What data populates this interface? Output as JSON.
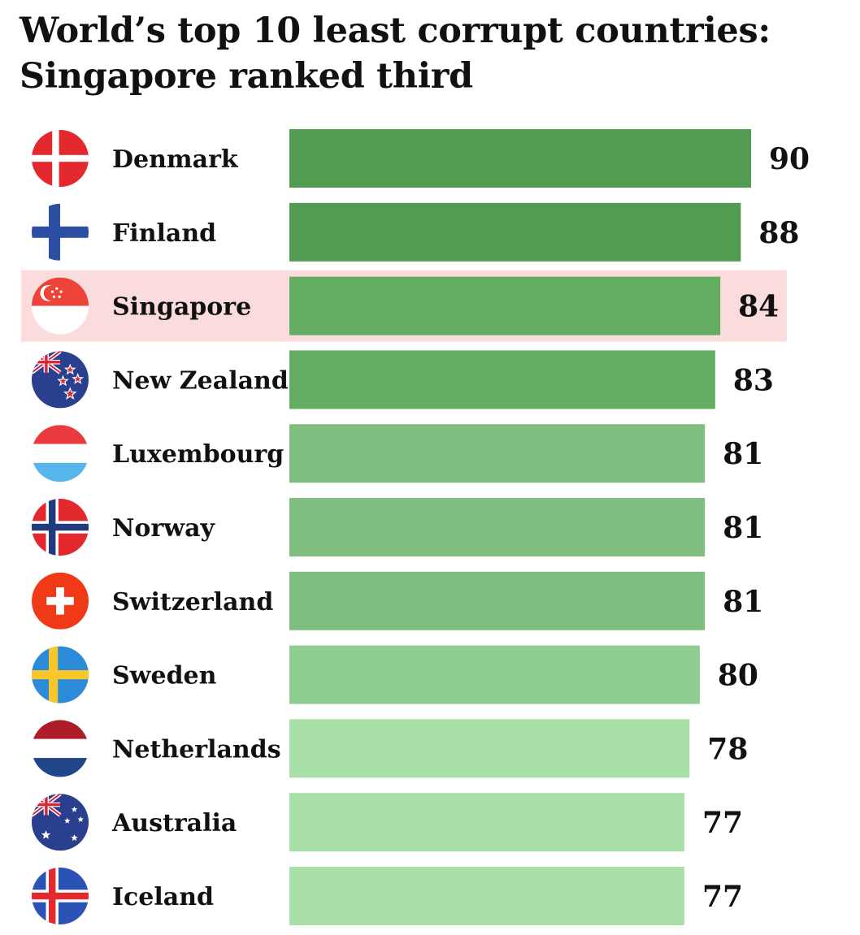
{
  "title_lines": [
    "World’s top 10 least corrupt countries:",
    "Singapore ranked third"
  ],
  "colors": {
    "highlight_band": "#fbdcdc",
    "bar_dark": "#529c52",
    "bar_mid": "#62ad62",
    "bar_light": "#80be80",
    "bar_lighter": "#90cd90",
    "bar_lightest": "#a8e0a8",
    "text": "#111111"
  },
  "chart_data": {
    "type": "bar",
    "orientation": "horizontal",
    "title": "World’s top 10 least corrupt countries: Singapore ranked third",
    "categories": [
      "Denmark",
      "Finland",
      "Singapore",
      "New Zealand",
      "Luxembourg",
      "Norway",
      "Switzerland",
      "Sweden",
      "Netherlands",
      "Australia",
      "Iceland"
    ],
    "values": [
      90,
      88,
      84,
      83,
      81,
      81,
      81,
      80,
      78,
      77,
      77
    ],
    "value_labels": [
      "90",
      "88",
      "84",
      "83",
      "81",
      "81",
      "81",
      "80",
      "78",
      "77",
      "77"
    ],
    "flag_icons": [
      "denmark-flag-icon",
      "finland-flag-icon",
      "singapore-flag-icon",
      "new-zealand-flag-icon",
      "luxembourg-flag-icon",
      "norway-flag-icon",
      "switzerland-flag-icon",
      "sweden-flag-icon",
      "netherlands-flag-icon",
      "australia-flag-icon",
      "iceland-flag-icon"
    ],
    "bar_colors": [
      "#529c52",
      "#529c52",
      "#62ad62",
      "#62ad62",
      "#80be80",
      "#80be80",
      "#80be80",
      "#90cd90",
      "#a8e0a8",
      "#a8e0a8",
      "#a8e0a8"
    ],
    "highlighted": "Singapore",
    "xlim": [
      0,
      90
    ],
    "grid": false,
    "legend": "none"
  }
}
